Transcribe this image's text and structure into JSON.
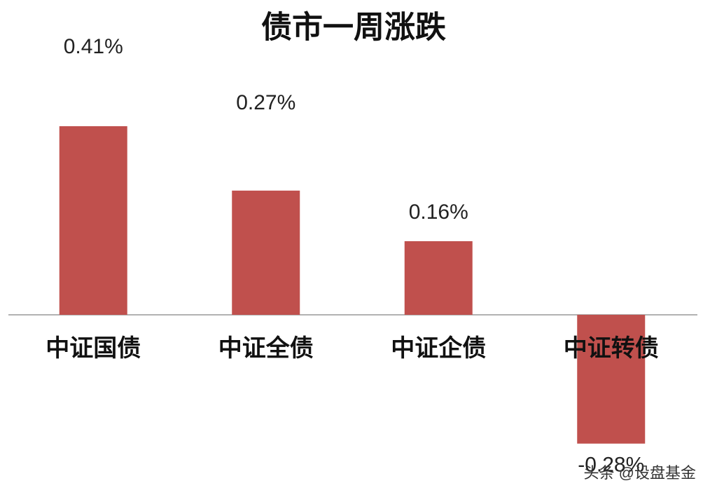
{
  "chart_data": {
    "type": "bar",
    "title": "债市一周涨跌",
    "categories": [
      "中证国债",
      "中证全债",
      "中证企债",
      "中证转债"
    ],
    "values": [
      0.41,
      0.27,
      0.16,
      -0.28
    ],
    "value_labels": [
      "0.41%",
      "0.27%",
      "0.16%",
      "-0.28%"
    ],
    "color": "#c0504d"
  },
  "watermark": "头条 @设盘基金"
}
